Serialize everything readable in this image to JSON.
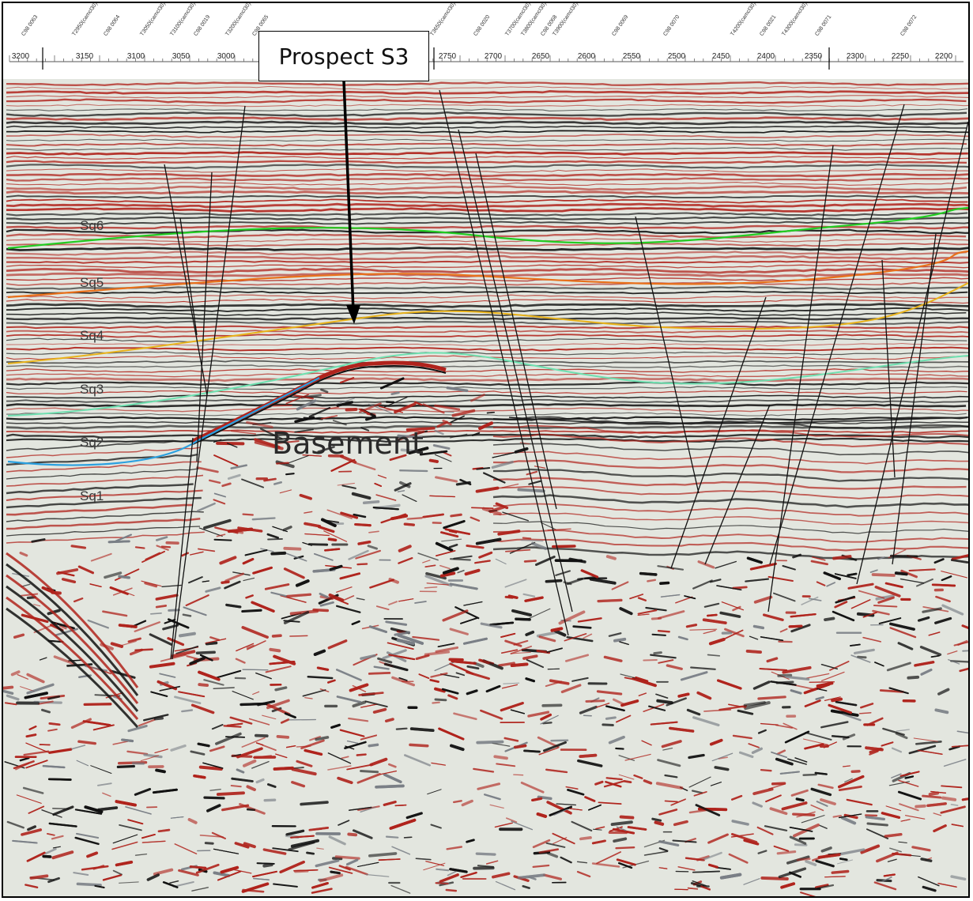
{
  "figure": {
    "callout": "Prospect S3",
    "basement_label": "Basement",
    "sequences": [
      {
        "label": "Sq6",
        "color": "#22cc22"
      },
      {
        "label": "Sq5",
        "color": "#e8701a"
      },
      {
        "label": "Sq4",
        "color": "#e8b21a"
      },
      {
        "label": "Sq3",
        "color": "#6ee0b0"
      },
      {
        "label": "Sq2",
        "color": "#2aa0e0"
      },
      {
        "label": "Sq1",
        "color": ""
      }
    ],
    "scale_ticks": [
      "3200",
      "3150",
      "3100",
      "3050",
      "3000",
      "2750",
      "2700",
      "2650",
      "2600",
      "2550",
      "2500",
      "2450",
      "2400",
      "2350",
      "2300",
      "2250",
      "2200"
    ],
    "trace_labels": [
      "C98 0063",
      "T2950(camcl30)",
      "C98 0064",
      "T3050(camcl30)",
      "T3100(camcl30)",
      "C98 0019",
      "T3200(camcl30)",
      "C98 0065",
      "C98 0020",
      "T3650(camcl30)",
      "T3700(camcl30)",
      "T3800(camcl30)",
      "C98 0068",
      "T3900(camcl30)",
      "C98 0069",
      "C98 0070",
      "T4200(camcl30)",
      "C98 0021",
      "T4300(camcl30)",
      "C98 0071",
      "C98 0072"
    ],
    "colors": {
      "reflector_red": "#b0231c",
      "reflector_black": "#111111",
      "background": "#e3e6df",
      "fault": "#111111"
    }
  }
}
